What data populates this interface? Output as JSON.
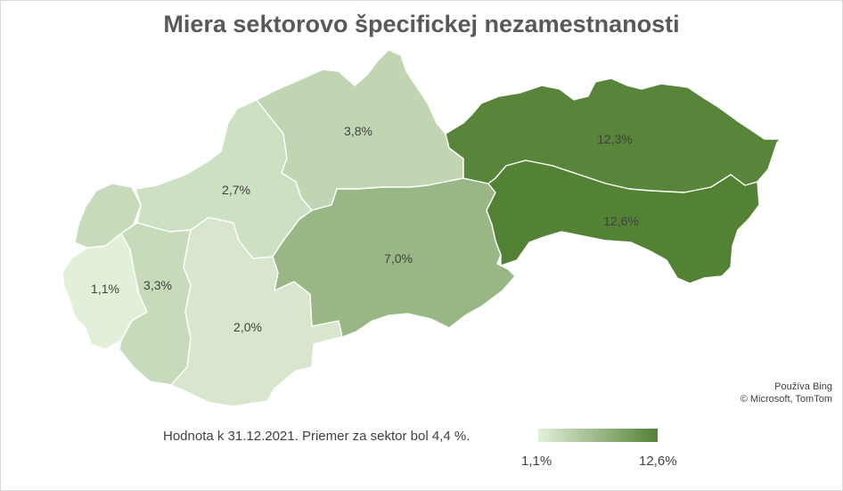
{
  "chart_data": {
    "type": "choropleth",
    "title": "Miera sektorovo špecifickej nezamestnanosti",
    "regions": [
      {
        "value": 1.1,
        "label": "1,1%"
      },
      {
        "value": 3.3,
        "label": "3,3%"
      },
      {
        "value": 2.0,
        "label": "2,0%"
      },
      {
        "value": 2.7,
        "label": "2,7%"
      },
      {
        "value": 3.8,
        "label": "3,8%"
      },
      {
        "value": 7.0,
        "label": "7,0%"
      },
      {
        "value": 12.3,
        "label": "12,3%"
      },
      {
        "value": 12.6,
        "label": "12,6%"
      }
    ],
    "color_scale": {
      "min_color": "#e2efd9",
      "max_color": "#548235",
      "min_label": "1,1%",
      "max_label": "12,6%"
    },
    "caption": "Hodnota k 31.12.2021. Priemer za sektor bol 4,4 %."
  },
  "credit": {
    "line1": "Používa Bing",
    "line2": "© Microsoft, TomTom"
  }
}
